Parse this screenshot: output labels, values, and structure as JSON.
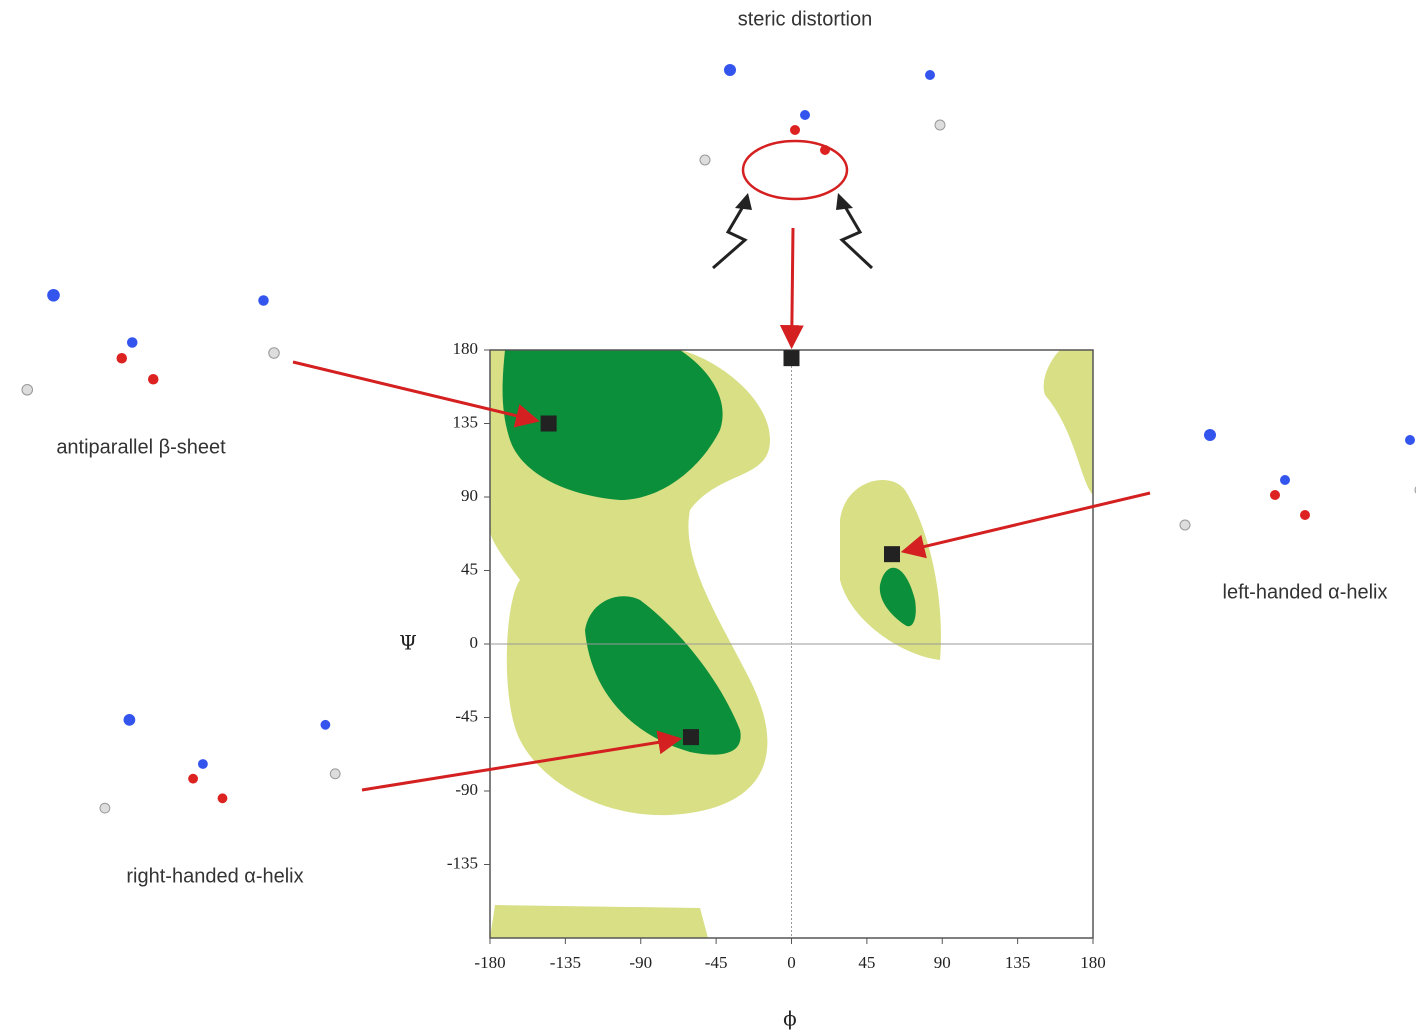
{
  "chart_data": {
    "type": "scatter",
    "xlabel": "ϕ",
    "ylabel": "Ψ",
    "x": [
      0,
      -145,
      60,
      -60
    ],
    "values": [
      175,
      135,
      55,
      -57
    ],
    "point_labels": [
      "steric distortion",
      "antiparallel β-sheet",
      "left-handed α-helix",
      "right-handed α-helix"
    ],
    "color": "#222222",
    "arrow_color": "#d42020",
    "xlim": [
      -180,
      180
    ],
    "ylim": [
      -180,
      180
    ],
    "xticks": [
      -180,
      -135,
      -90,
      -45,
      0,
      45,
      90,
      135,
      180
    ],
    "yticks": [
      -135,
      -90,
      -45,
      0,
      45,
      90,
      135,
      180
    ],
    "grid": false
  }
}
